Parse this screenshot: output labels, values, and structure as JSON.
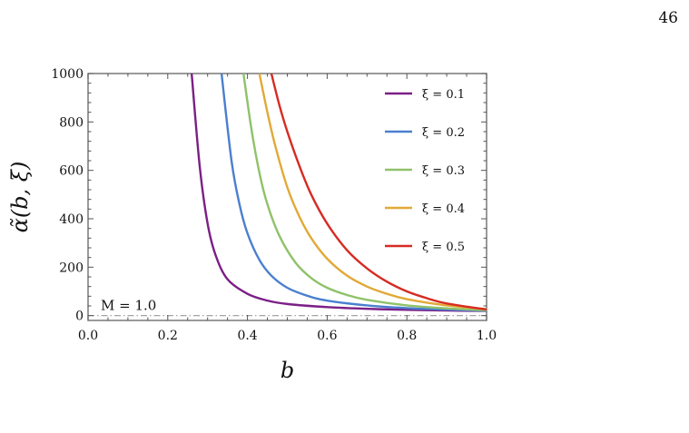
{
  "page": {
    "number": "46"
  },
  "chart_data": {
    "type": "line",
    "title": "",
    "xlabel": "b",
    "ylabel": "α̃(b, ξ)",
    "xlim": [
      0.0,
      1.0
    ],
    "ylim": [
      -20,
      1000
    ],
    "x_ticks": [
      "0.0",
      "0.2",
      "0.4",
      "0.6",
      "0.8",
      "1.0"
    ],
    "x_tick_values": [
      0.0,
      0.2,
      0.4,
      0.6,
      0.8,
      1.0
    ],
    "y_ticks": [
      "0",
      "200",
      "400",
      "600",
      "800",
      "1000"
    ],
    "y_tick_values": [
      0,
      200,
      400,
      600,
      800,
      1000
    ],
    "grid": false,
    "legend_position": "top-right",
    "annotation": {
      "text": "M = 1.0",
      "y": 0,
      "style": "dash-dot"
    },
    "series": [
      {
        "name": "ξ = 0.1",
        "color": "#7b1f86",
        "x": [
          0.26,
          0.28,
          0.3,
          0.32,
          0.35,
          0.4,
          0.45,
          0.5,
          0.6,
          0.7,
          0.8,
          0.9,
          1.0
        ],
        "y": [
          1000,
          620,
          380,
          250,
          150,
          90,
          62,
          48,
          35,
          28,
          24,
          21,
          19
        ]
      },
      {
        "name": "ξ = 0.2",
        "color": "#4a7fcf",
        "x": [
          0.335,
          0.36,
          0.38,
          0.4,
          0.43,
          0.46,
          0.5,
          0.55,
          0.6,
          0.7,
          0.8,
          0.9,
          1.0
        ],
        "y": [
          1000,
          640,
          460,
          340,
          230,
          165,
          115,
          82,
          62,
          42,
          31,
          25,
          20
        ]
      },
      {
        "name": "ξ = 0.3",
        "color": "#8fc26a",
        "x": [
          0.39,
          0.41,
          0.43,
          0.45,
          0.48,
          0.52,
          0.56,
          0.6,
          0.65,
          0.7,
          0.8,
          0.9,
          1.0
        ],
        "y": [
          1000,
          770,
          590,
          460,
          330,
          220,
          155,
          115,
          85,
          65,
          42,
          30,
          22
        ]
      },
      {
        "name": "ξ = 0.4",
        "color": "#e1a937",
        "x": [
          0.43,
          0.45,
          0.47,
          0.5,
          0.53,
          0.56,
          0.6,
          0.65,
          0.7,
          0.75,
          0.8,
          0.9,
          1.0
        ],
        "y": [
          1000,
          840,
          700,
          530,
          410,
          320,
          235,
          165,
          120,
          90,
          68,
          42,
          27
        ]
      },
      {
        "name": "ξ = 0.5",
        "color": "#d62b22",
        "x": [
          0.46,
          0.48,
          0.5,
          0.53,
          0.56,
          0.6,
          0.65,
          0.7,
          0.75,
          0.8,
          0.85,
          0.9,
          1.0
        ],
        "y": [
          1000,
          870,
          760,
          620,
          500,
          380,
          270,
          195,
          140,
          100,
          72,
          50,
          25
        ]
      }
    ]
  }
}
